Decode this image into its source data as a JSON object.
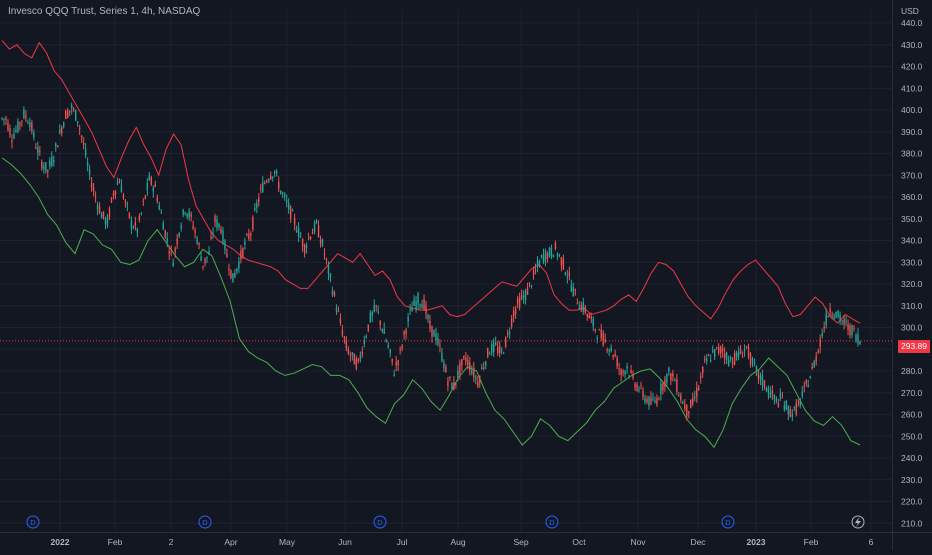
{
  "header": {
    "title": "Invesco QQQ Trust, Series 1, 4h, NASDAQ",
    "currency": "USD",
    "last_price": "293.89"
  },
  "colors": {
    "background": "#131722",
    "grid": "#1e2230",
    "up": "#26a69a",
    "down": "#ef5350",
    "upper_band": "#f23645",
    "lower_band": "#4caf50",
    "axis_text": "#b2b5be",
    "price_line": "#f23645"
  },
  "chart_data": {
    "type": "candlestick",
    "title": "Invesco QQQ Trust, Series 1, 4h, NASDAQ",
    "currency": "USD",
    "y_ticks": [
      210,
      220,
      230,
      240,
      250,
      260,
      270,
      280,
      290,
      300,
      310,
      320,
      330,
      340,
      350,
      360,
      370,
      380,
      390,
      400,
      410,
      420,
      430,
      440
    ],
    "ylim": [
      206,
      446
    ],
    "x_tick_labels": [
      "2022",
      "Feb",
      "2",
      "Apr",
      "May",
      "Jun",
      "Jul",
      "Aug",
      "Sep",
      "Oct",
      "Nov",
      "Dec",
      "2023",
      "Feb",
      "6"
    ],
    "bold_x_ticks": [
      "2022",
      "2023"
    ],
    "dividend_markers": [
      "D",
      "D",
      "D",
      "D",
      "D"
    ],
    "last_price": 293.89,
    "grid": true,
    "series": [
      {
        "name": "Close",
        "values": [
          396,
          388,
          392,
          398,
          395,
          384,
          376,
          372,
          379,
          389,
          398,
          401,
          396,
          384,
          370,
          360,
          352,
          348,
          362,
          368,
          357,
          348,
          345,
          356,
          368,
          364,
          352,
          340,
          331,
          345,
          355,
          350,
          341,
          329,
          334,
          349,
          346,
          333,
          322,
          330,
          338,
          344,
          356,
          365,
          370,
          372,
          363,
          357,
          351,
          344,
          337,
          343,
          347,
          338,
          326,
          314,
          302,
          291,
          286,
          283,
          294,
          304,
          309,
          300,
          291,
          280,
          288,
          300,
          309,
          313,
          311,
          300,
          296,
          287,
          276,
          273,
          281,
          286,
          281,
          275,
          283,
          290,
          291,
          288,
          296,
          307,
          312,
          315,
          321,
          328,
          333,
          334,
          336,
          331,
          325,
          317,
          311,
          308,
          303,
          298,
          295,
          291,
          287,
          279,
          282,
          276,
          272,
          268,
          265,
          267,
          274,
          279,
          276,
          268,
          262,
          265,
          273,
          283,
          287,
          289,
          290,
          285,
          286,
          288,
          291,
          283,
          278,
          274,
          270,
          266,
          267,
          262,
          261,
          266,
          273,
          280,
          290,
          301,
          309,
          306,
          303,
          300,
          298,
          294
        ]
      },
      {
        "name": "Upper band",
        "values": [
          432,
          428,
          430,
          426,
          424,
          431,
          426,
          418,
          414,
          408,
          402,
          396,
          390,
          382,
          374,
          369,
          378,
          386,
          392,
          384,
          378,
          370,
          382,
          389,
          384,
          368,
          356,
          350,
          344,
          340,
          338,
          336,
          333,
          331,
          330,
          329,
          328,
          326,
          322,
          320,
          318,
          318,
          322,
          326,
          330,
          334,
          332,
          330,
          334,
          329,
          324,
          326,
          322,
          314,
          310,
          309,
          308,
          308,
          309,
          310,
          306,
          305,
          306,
          309,
          312,
          315,
          318,
          321,
          320,
          319,
          323,
          327,
          329,
          325,
          315,
          311,
          308,
          308,
          309,
          306,
          307,
          308,
          310,
          313,
          315,
          312,
          318,
          325,
          330,
          329,
          326,
          320,
          314,
          310,
          307,
          304,
          309,
          316,
          322,
          326,
          329,
          331,
          327,
          323,
          319,
          311,
          305,
          306,
          310,
          314,
          311,
          305,
          302,
          306,
          304,
          302
        ]
      },
      {
        "name": "Lower band",
        "values": [
          378,
          375,
          371,
          366,
          360,
          352,
          347,
          339,
          334,
          345,
          343,
          338,
          336,
          330,
          329,
          331,
          340,
          345,
          339,
          333,
          328,
          330,
          336,
          333,
          323,
          312,
          295,
          289,
          286,
          284,
          280,
          278,
          279,
          281,
          283,
          282,
          278,
          278,
          276,
          270,
          263,
          259,
          256,
          265,
          269,
          276,
          272,
          266,
          262,
          269,
          277,
          282,
          280,
          270,
          262,
          258,
          252,
          246,
          250,
          258,
          255,
          250,
          248,
          252,
          256,
          262,
          266,
          272,
          275,
          278,
          280,
          281,
          277,
          272,
          266,
          258,
          253,
          250,
          245,
          253,
          265,
          272,
          278,
          281,
          286,
          282,
          278,
          270,
          262,
          257,
          255,
          259,
          255,
          248,
          246
        ]
      }
    ]
  }
}
